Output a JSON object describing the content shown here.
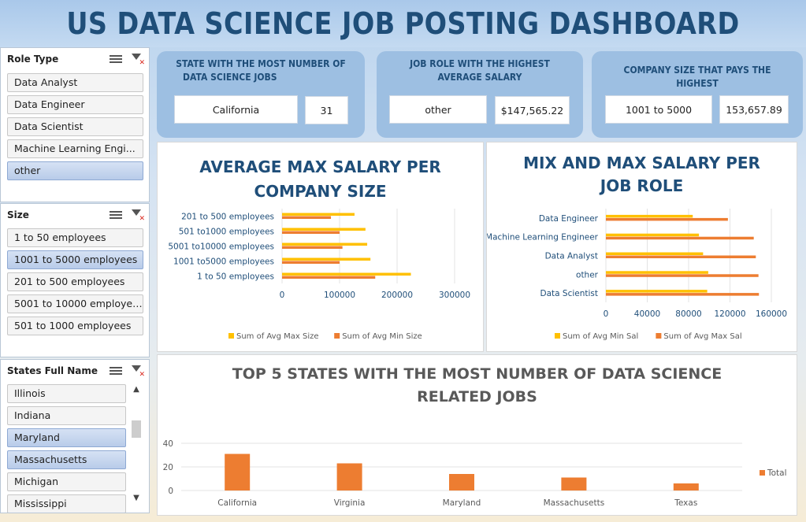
{
  "title": "US DATA SCIENCE JOB POSTING DASHBOARD",
  "slicers": {
    "role": {
      "header": "Role Type",
      "items": [
        {
          "label": "Data Analyst",
          "selected": false
        },
        {
          "label": "Data Engineer",
          "selected": false
        },
        {
          "label": "Data Scientist",
          "selected": false
        },
        {
          "label": "Machine Learning Engi...",
          "selected": false
        },
        {
          "label": "other",
          "selected": true
        }
      ]
    },
    "size": {
      "header": "Size",
      "items": [
        {
          "label": "1 to 50 employees",
          "selected": false
        },
        {
          "label": "1001 to 5000 employees",
          "selected": true
        },
        {
          "label": "201 to 500 employees",
          "selected": false
        },
        {
          "label": "5001 to 10000 employees",
          "selected": false
        },
        {
          "label": "501 to 1000 employees",
          "selected": false
        }
      ]
    },
    "states": {
      "header": "States Full Name",
      "items": [
        {
          "label": "Illinois",
          "selected": false
        },
        {
          "label": "Indiana",
          "selected": false
        },
        {
          "label": "Maryland",
          "selected": true
        },
        {
          "label": "Massachusetts",
          "selected": true
        },
        {
          "label": "Michigan",
          "selected": false
        },
        {
          "label": "Mississippi",
          "selected": false
        }
      ]
    }
  },
  "kpis": {
    "state": {
      "title_line1": "STATE WITH THE MOST NUMBER OF",
      "title_line2": "DATA SCIENCE JOBS",
      "name": "California",
      "value": "31"
    },
    "role": {
      "title_line1": "JOB ROLE WITH THE HIGHEST",
      "title_line2": "AVERAGE SALARY",
      "name": "other",
      "value": "$147,565.22"
    },
    "company": {
      "title_line1": "COMPANY SIZE THAT PAYS THE HIGHEST",
      "name": "1001 to 5000",
      "value": "153,657.89"
    }
  },
  "colors": {
    "yellow": "#ffc000",
    "orange": "#ed7d31",
    "navy": "#1f4e79",
    "selected_item": "#b8cbe9"
  },
  "chart_data": [
    {
      "type": "bar",
      "orientation": "horizontal",
      "title_line1": "AVERAGE MAX SALARY PER",
      "title_line2": "COMPANY SIZE",
      "categories": [
        "201 to 500 employees",
        "501 to1000 employees",
        "5001 to10000 employees",
        "1001 to5000 employees",
        "1 to 50 employees"
      ],
      "series": [
        {
          "name": "Sum of Avg Max Size",
          "color": "#ffc000",
          "values": [
            126000,
            145000,
            148000,
            153658,
            224000
          ]
        },
        {
          "name": "Sum of Avg Min Size",
          "color": "#ed7d31",
          "values": [
            85000,
            100000,
            105000,
            100000,
            162000
          ]
        }
      ],
      "xlim": [
        0,
        300000
      ],
      "xticks": [
        "0",
        "100000",
        "200000",
        "300000"
      ],
      "legend_position": "bottom"
    },
    {
      "type": "bar",
      "orientation": "horizontal",
      "title_line1": "MIX AND MAX SALARY PER",
      "title_line2": "JOB ROLE",
      "categories": [
        "Data Engineer",
        "Machine Learning Engineer",
        "Data Analyst",
        "other",
        "Data Scientist"
      ],
      "series": [
        {
          "name": "Sum of Avg Min Sal",
          "color": "#ffc000",
          "values": [
            84000,
            90000,
            94000,
            99000,
            98000
          ]
        },
        {
          "name": "Sum of Avg Max Sal",
          "color": "#ed7d31",
          "values": [
            118000,
            143000,
            145000,
            147565,
            148000
          ]
        }
      ],
      "xlim": [
        0,
        160000
      ],
      "xticks": [
        "0",
        "40000",
        "80000",
        "120000",
        "160000"
      ],
      "legend_position": "bottom"
    },
    {
      "type": "bar",
      "title_line1": "TOP 5 STATES WITH THE MOST NUMBER OF DATA SCIENCE",
      "title_line2": "RELATED JOBS",
      "categories": [
        "California",
        "Virginia",
        "Maryland",
        "Massachusetts",
        "Texas"
      ],
      "series": [
        {
          "name": "Total",
          "color": "#ed7d31",
          "values": [
            31,
            23,
            14,
            11,
            6
          ]
        }
      ],
      "ylim": [
        0,
        40
      ],
      "yticks": [
        "0",
        "20",
        "40"
      ],
      "legend_position": "right"
    }
  ]
}
